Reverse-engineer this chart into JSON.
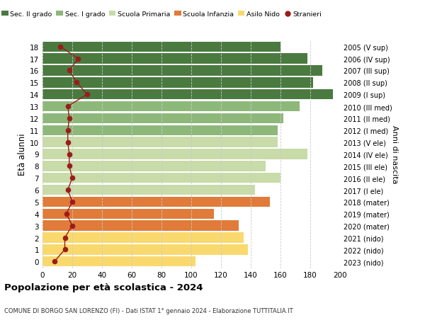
{
  "ages": [
    0,
    1,
    2,
    3,
    4,
    5,
    6,
    7,
    8,
    9,
    10,
    11,
    12,
    13,
    14,
    15,
    16,
    17,
    18
  ],
  "bar_values": [
    103,
    138,
    135,
    132,
    115,
    153,
    143,
    160,
    150,
    178,
    158,
    158,
    162,
    173,
    195,
    182,
    188,
    178,
    160
  ],
  "stranieri": [
    8,
    15,
    15,
    20,
    16,
    20,
    17,
    20,
    18,
    18,
    17,
    17,
    18,
    17,
    30,
    23,
    18,
    24,
    12
  ],
  "bar_colors": [
    "#f9d96e",
    "#f9d96e",
    "#f9d96e",
    "#e07b39",
    "#e07b39",
    "#e07b39",
    "#c8dba8",
    "#c8dba8",
    "#c8dba8",
    "#c8dba8",
    "#c8dba8",
    "#8db87a",
    "#8db87a",
    "#8db87a",
    "#4a7a40",
    "#4a7a40",
    "#4a7a40",
    "#4a7a40",
    "#4a7a40"
  ],
  "right_labels": [
    "2023 (nido)",
    "2022 (nido)",
    "2021 (nido)",
    "2020 (mater)",
    "2019 (mater)",
    "2018 (mater)",
    "2017 (I ele)",
    "2016 (II ele)",
    "2015 (III ele)",
    "2014 (IV ele)",
    "2013 (V ele)",
    "2012 (I med)",
    "2011 (II med)",
    "2010 (III med)",
    "2009 (I sup)",
    "2008 (II sup)",
    "2007 (III sup)",
    "2006 (IV sup)",
    "2005 (V sup)"
  ],
  "legend_labels": [
    "Sec. II grado",
    "Sec. I grado",
    "Scuola Primaria",
    "Scuola Infanzia",
    "Asilo Nido",
    "Stranieri"
  ],
  "legend_colors": [
    "#4a7a40",
    "#8db87a",
    "#c8dba8",
    "#e07b39",
    "#f9d96e",
    "#9b1c1c"
  ],
  "title": "Popolazione per età scolastica - 2024",
  "subtitle": "COMUNE DI BORGO SAN LORENZO (FI) - Dati ISTAT 1° gennaio 2024 - Elaborazione TUTTITALIA.IT",
  "ylabel": "Età alunni",
  "right_ylabel": "Anni di nascita",
  "xlim": [
    0,
    200
  ],
  "xticks": [
    0,
    20,
    40,
    60,
    80,
    100,
    120,
    140,
    160,
    180,
    200
  ],
  "stranieri_color": "#9b1c1c",
  "bar_height": 0.85,
  "background_color": "#ffffff",
  "grid_color": "#cccccc"
}
